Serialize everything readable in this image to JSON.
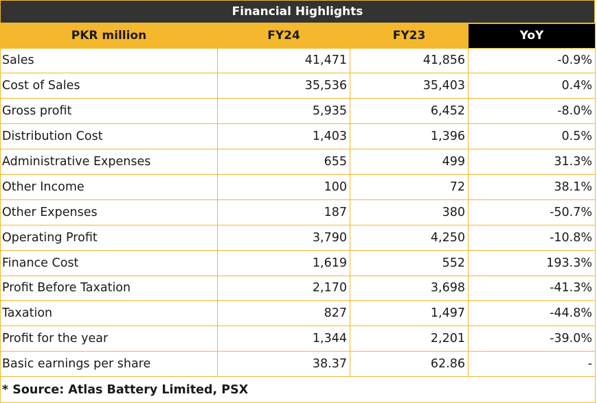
{
  "title": "Financial Highlights",
  "header": {
    "col0": "PKR million",
    "col1": "FY24",
    "col2": "FY23",
    "col3": "YoY"
  },
  "rows": [
    {
      "label": "Sales",
      "fy24": "41,471",
      "fy23": "41,856",
      "yoy": "-0.9%"
    },
    {
      "label": "Cost of Sales",
      "fy24": "35,536",
      "fy23": "35,403",
      "yoy": "0.4%"
    },
    {
      "label": "Gross profit",
      "fy24": "5,935",
      "fy23": "6,452",
      "yoy": "-8.0%"
    },
    {
      "label": "Distribution Cost",
      "fy24": "1,403",
      "fy23": "1,396",
      "yoy": "0.5%"
    },
    {
      "label": "Administrative Expenses",
      "fy24": "655",
      "fy23": "499",
      "yoy": "31.3%"
    },
    {
      "label": "Other Income",
      "fy24": "100",
      "fy23": "72",
      "yoy": "38.1%"
    },
    {
      "label": "Other Expenses",
      "fy24": "187",
      "fy23": "380",
      "yoy": "-50.7%"
    },
    {
      "label": "Operating Profit",
      "fy24": "3,790",
      "fy23": "4,250",
      "yoy": "-10.8%"
    },
    {
      "label": "Finance Cost",
      "fy24": "1,619",
      "fy23": "552",
      "yoy": "193.3%"
    },
    {
      "label": "Profit Before Taxation",
      "fy24": "2,170",
      "fy23": "3,698",
      "yoy": "-41.3%"
    },
    {
      "label": "Taxation",
      "fy24": "827",
      "fy23": "1,497",
      "yoy": "-44.8%"
    },
    {
      "label": "Profit for the year",
      "fy24": "1,344",
      "fy23": "2,201",
      "yoy": "-39.0%"
    },
    {
      "label": "Basic earnings per share",
      "fy24": "38.37",
      "fy23": "62.86",
      "yoy": "-"
    }
  ],
  "source": "* Source: Atlas Battery Limited, PSX",
  "colors": {
    "accent": "#f5b72c",
    "title_bg": "#333333",
    "yoy_bg": "#000000"
  }
}
